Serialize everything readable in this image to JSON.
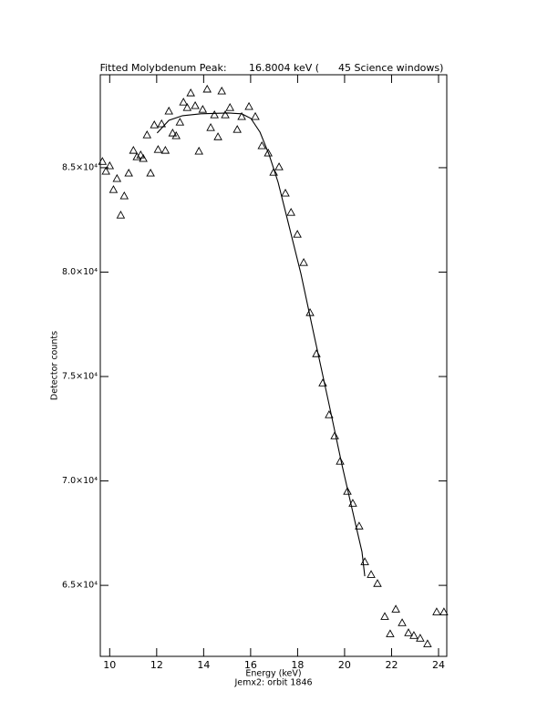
{
  "chart_data": {
    "type": "scatter",
    "title": "Fitted Molybdenum Peak:       16.8004 keV (      45 Science windows)",
    "x_label": "Energy (keV)",
    "subtitle": "Jemx2: orbit 1846",
    "y_label": "Detector counts",
    "xlim": [
      9.6,
      24.35
    ],
    "ylim": [
      61600,
      89450
    ],
    "xticks": [
      10,
      12,
      14,
      16,
      18,
      20,
      22,
      24
    ],
    "yticks": [
      {
        "value": 65000,
        "label": "6.5×10⁴"
      },
      {
        "value": 70000,
        "label": "7.0×10⁴"
      },
      {
        "value": 75000,
        "label": "7.5×10⁴"
      },
      {
        "value": 80000,
        "label": "8.0×10⁴"
      },
      {
        "value": 85000,
        "label": "8.5×10⁴"
      }
    ],
    "series": [
      {
        "type": "scatter",
        "marker": "triangle",
        "color": "#000000",
        "x": [
          9.69,
          9.84,
          10.0,
          10.16,
          10.31,
          10.47,
          10.62,
          10.81,
          11.01,
          11.16,
          11.32,
          11.43,
          11.59,
          11.74,
          11.9,
          12.06,
          12.21,
          12.37,
          12.52,
          12.68,
          12.83,
          12.99,
          13.14,
          13.3,
          13.45,
          13.64,
          13.8,
          13.96,
          14.15,
          14.3,
          14.46,
          14.61,
          14.77,
          14.92,
          15.12,
          15.43,
          15.62,
          15.93,
          16.2,
          16.48,
          16.75,
          16.98,
          17.21,
          17.48,
          17.72,
          17.99,
          18.26,
          18.53,
          18.8,
          19.07,
          19.34,
          19.58,
          19.81,
          20.12,
          20.35,
          20.62,
          20.86,
          21.13,
          21.4,
          21.71,
          21.94,
          22.18,
          22.45,
          22.72,
          22.95,
          23.22,
          23.53,
          23.92,
          24.23
        ],
        "values": [
          85300,
          84830,
          85090,
          83950,
          84480,
          82730,
          83650,
          84740,
          85830,
          85520,
          85610,
          85440,
          86570,
          84740,
          87050,
          85870,
          87100,
          85830,
          87710,
          86660,
          86530,
          87180,
          88140,
          87880,
          88580,
          87970,
          85790,
          87790,
          88760,
          86920,
          87530,
          86480,
          88670,
          87530,
          87880,
          86830,
          87450,
          87930,
          87450,
          86050,
          85700,
          84780,
          85040,
          83780,
          82860,
          81810,
          80460,
          78060,
          76090,
          74690,
          73170,
          72160,
          70940,
          69500,
          68930,
          67840,
          66130,
          65520,
          65090,
          63510,
          62680,
          63860,
          63210,
          62730,
          62600,
          62470,
          62200,
          63730,
          63730
        ]
      },
      {
        "type": "line",
        "color": "#000000",
        "x": [
          12.02,
          12.52,
          13.1,
          13.88,
          15.04,
          15.62,
          16.01,
          16.4,
          16.79,
          17.17,
          17.56,
          18.14,
          18.72,
          19.31,
          19.89,
          20.47,
          20.74,
          20.86
        ],
        "values": [
          86660,
          87270,
          87490,
          87580,
          87620,
          87580,
          87360,
          86700,
          85610,
          84300,
          82550,
          79930,
          76880,
          73820,
          70760,
          67920,
          66610,
          65440
        ]
      }
    ]
  }
}
